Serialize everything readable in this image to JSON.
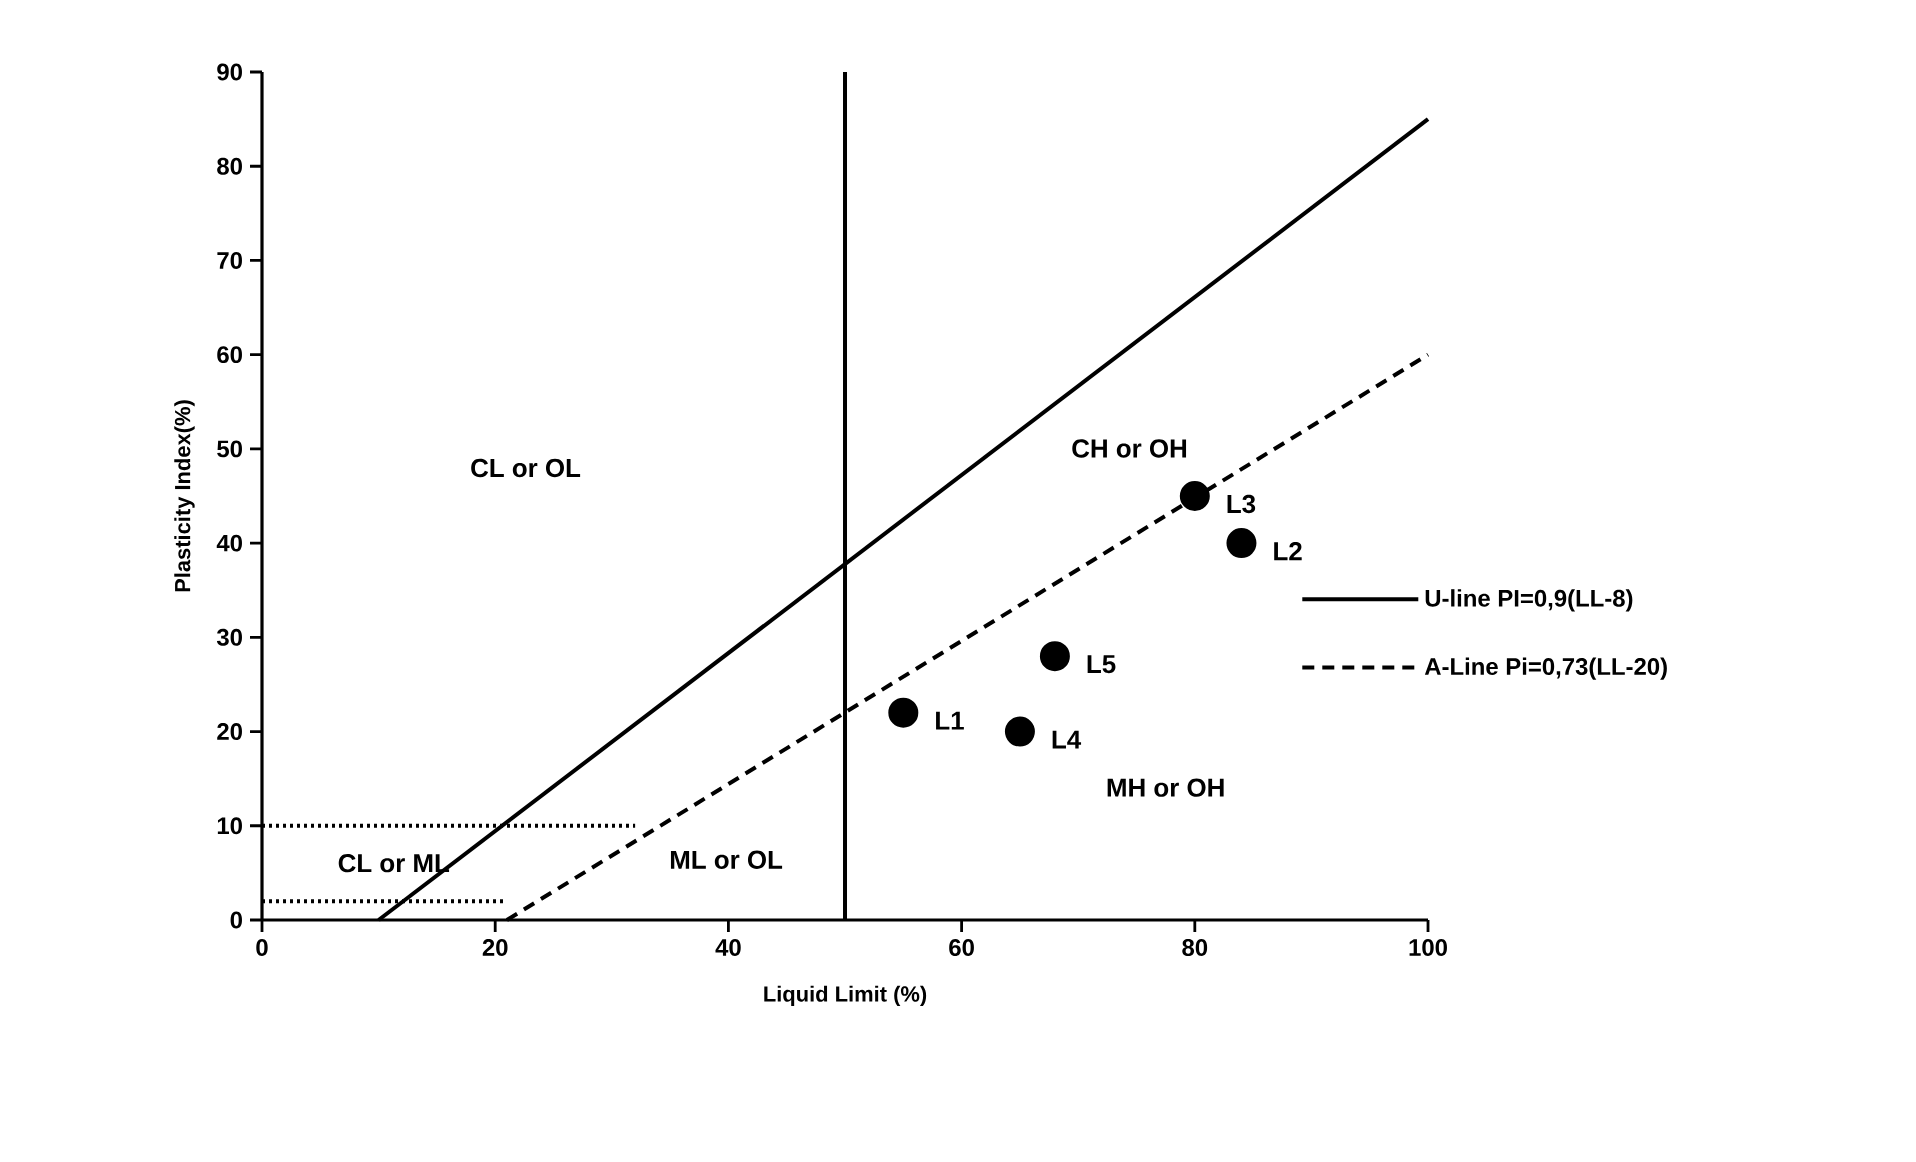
{
  "chart_data": {
    "type": "scatter",
    "xlabel": "Liquid Limit (%)",
    "ylabel": "Plasticity Index(%)",
    "xlim": [
      0,
      100
    ],
    "ylim": [
      0,
      90
    ],
    "xticks": [
      0,
      20,
      40,
      60,
      80,
      100
    ],
    "yticks": [
      0,
      10,
      20,
      30,
      40,
      50,
      60,
      70,
      80,
      90
    ],
    "grid": false,
    "legend": "right",
    "series": [
      {
        "name": "U-line PI=0,9(LL-8)",
        "type": "line",
        "line_style": "solid",
        "marker": "none",
        "color": "#000000",
        "x": [
          10,
          100
        ],
        "values": [
          0,
          85
        ]
      },
      {
        "name": "A-Line Pi=0,73(LL-20)",
        "type": "line",
        "line_style": "dashed",
        "marker": "none",
        "color": "#000000",
        "x": [
          21,
          100
        ],
        "values": [
          0,
          60
        ]
      },
      {
        "type": "line",
        "line_style": "dotted",
        "marker": "none",
        "color": "#000000",
        "x": [
          0,
          32
        ],
        "values": [
          10,
          10
        ]
      },
      {
        "type": "line",
        "line_style": "dotted",
        "marker": "none",
        "color": "#000000",
        "x": [
          0,
          21
        ],
        "values": [
          2,
          2
        ]
      },
      {
        "name": "L1",
        "marker": "circle",
        "color": "#000000",
        "x": [
          55
        ],
        "values": [
          22
        ]
      },
      {
        "name": "L2",
        "marker": "circle",
        "color": "#000000",
        "x": [
          84
        ],
        "values": [
          40
        ]
      },
      {
        "name": "L3",
        "marker": "circle",
        "color": "#000000",
        "x": [
          80
        ],
        "values": [
          45
        ]
      },
      {
        "name": "L4",
        "marker": "circle",
        "color": "#000000",
        "x": [
          65
        ],
        "values": [
          20
        ]
      },
      {
        "name": "L5",
        "marker": "circle",
        "color": "#000000",
        "x": [
          68
        ],
        "values": [
          28
        ]
      }
    ],
    "ref_lines": [
      {
        "axis": "x",
        "value": 50,
        "color": "#000000",
        "line_style": "solid"
      }
    ],
    "annotations": [
      "CL or OL",
      "CH or OH",
      "MH or OH",
      "CL or ML",
      "ML or OL"
    ]
  }
}
